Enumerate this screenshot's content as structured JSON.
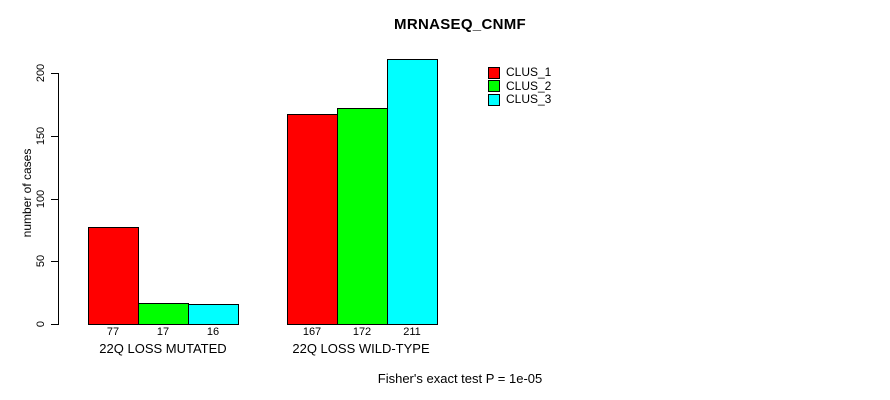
{
  "chart_data": {
    "type": "bar",
    "title": "MRNASEQ_CNMF",
    "ylabel": "number of cases",
    "xlabel": "",
    "categories": [
      "22Q LOSS MUTATED",
      "22Q LOSS WILD-TYPE"
    ],
    "series": [
      {
        "name": "CLUS_1",
        "color": "#ff0000",
        "values": [
          77,
          167
        ]
      },
      {
        "name": "CLUS_2",
        "color": "#00ff00",
        "values": [
          17,
          172
        ]
      },
      {
        "name": "CLUS_3",
        "color": "#00ffff",
        "values": [
          16,
          211
        ]
      }
    ],
    "bar_value_labels": [
      [
        "77",
        "17",
        "16"
      ],
      [
        "167",
        "172",
        "211"
      ]
    ],
    "yticks": [
      0,
      50,
      100,
      150,
      200
    ],
    "ylim": [
      0,
      200
    ],
    "grid": false,
    "legend_position": "top-right",
    "bar_border_color": "#000000",
    "annotation": "Fisher's exact test P = 1e-05"
  }
}
